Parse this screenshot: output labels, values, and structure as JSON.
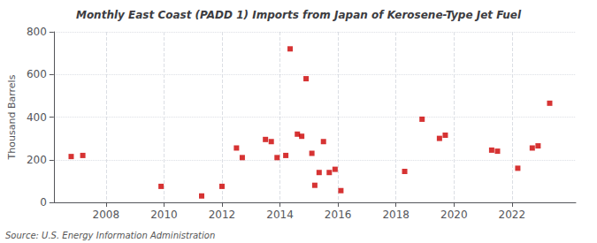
{
  "chart_data": {
    "type": "scatter",
    "title": "Monthly East Coast (PADD 1) Imports from Japan of Kerosene-Type Jet Fuel",
    "ylabel": "Thousand Barrels",
    "annotations": [
      "Source: U.S. Energy Information Administration"
    ],
    "x": [
      2006.8,
      2007.2,
      2009.9,
      2011.3,
      2012.0,
      2012.5,
      2012.7,
      2013.5,
      2013.7,
      2013.9,
      2014.2,
      2014.35,
      2014.6,
      2014.75,
      2014.9,
      2015.1,
      2015.2,
      2015.35,
      2015.5,
      2015.7,
      2015.9,
      2016.1,
      2018.3,
      2018.9,
      2019.5,
      2019.7,
      2021.3,
      2021.5,
      2022.2,
      2022.7,
      2022.9,
      2023.3
    ],
    "values": [
      215,
      220,
      75,
      30,
      75,
      255,
      210,
      295,
      285,
      210,
      220,
      720,
      320,
      310,
      580,
      230,
      80,
      140,
      285,
      140,
      155,
      55,
      145,
      390,
      300,
      315,
      245,
      240,
      160,
      255,
      265,
      465
    ],
    "color": "#cc0000",
    "marker": "square",
    "xlim": [
      2006.2,
      2024.2
    ],
    "xticks": [
      2008,
      2010,
      2012,
      2014,
      2016,
      2018,
      2020,
      2022
    ],
    "ylim": [
      0,
      800
    ],
    "yticks": [
      0,
      200,
      400,
      600,
      800
    ],
    "grid": true
  }
}
